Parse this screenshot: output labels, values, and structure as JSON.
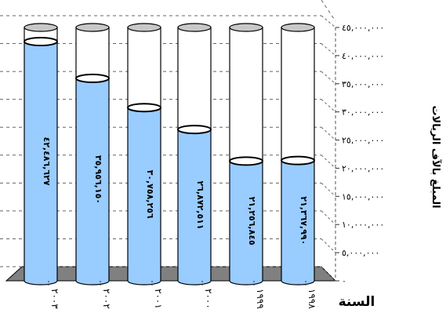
{
  "chart_data": {
    "type": "bar",
    "style": "3d-cylinder",
    "ylabel": "المبلغ بالآف الريالات",
    "xlabel": "السنة",
    "ylim": [
      0,
      45000000
    ],
    "y_ticks": [
      "٠",
      "٥,٠٠٠,٠٠٠",
      "١٠,٠٠٠,٠٠٠",
      "١٥,٠٠٠,٠٠٠",
      "٢٠,٠٠٠,٠٠٠",
      "٢٥,٠٠٠,٠٠٠",
      "٣٠,٠٠٠,٠٠٠",
      "٣٥,٠٠٠,٠٠٠",
      "٤٠,٠٠٠,٠٠٠",
      "٤٥,٠٠٠,٠٠٠"
    ],
    "y_tick_values": [
      0,
      5000000,
      10000000,
      15000000,
      20000000,
      25000000,
      30000000,
      35000000,
      40000000,
      45000000
    ],
    "categories": [
      "٢٠٠٣",
      "٢٠٠٢",
      "٢٠٠١",
      "٢٠٠٠",
      "١٩٩٩",
      "١٩٩٨"
    ],
    "values": [
      42486627,
      35956150,
      30758256,
      26872511,
      21256845,
      21367990
    ],
    "value_labels": [
      "٤٢,٤٨٦,٦٢٧",
      "٣٥,٩٥٦,١٥٠",
      "٣٠,٧٥٨,٢٥٦",
      "٢٦,٨٧٢,٥١١",
      "٢١,٢٥٦,٨٤٥",
      "٢١,٣٦٧,٩٩٠"
    ],
    "grid": true,
    "colors": {
      "fill": "#99ccff",
      "fill_dark": "#6699cc",
      "empty": "#ffffff",
      "floor": "#808080",
      "outline": "#000000"
    }
  }
}
